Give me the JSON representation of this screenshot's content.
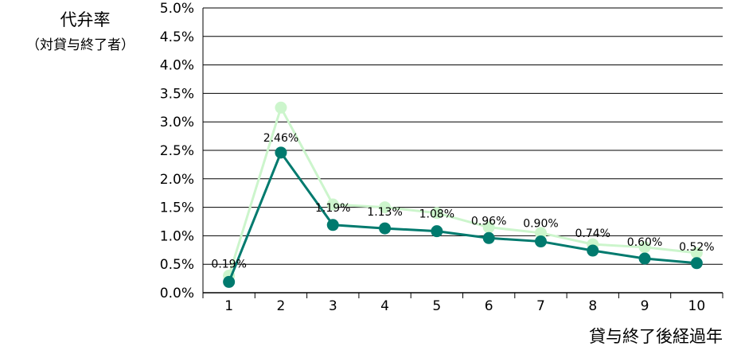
{
  "chart_data": {
    "type": "line",
    "ylabel": "代弁率",
    "ylabel_sub": "（対貸与終了者）",
    "xlabel": "貸与終了後経過年",
    "categories": [
      "1",
      "2",
      "3",
      "4",
      "5",
      "6",
      "7",
      "8",
      "9",
      "10"
    ],
    "ylim": [
      0,
      5
    ],
    "yticks": [
      "0.0%",
      "0.5%",
      "1.0%",
      "1.5%",
      "2.0%",
      "2.5%",
      "3.0%",
      "3.5%",
      "4.0%",
      "4.5%",
      "5.0%"
    ],
    "grid": true,
    "series": [
      {
        "values": [
          0.3,
          3.25,
          1.55,
          1.5,
          1.4,
          1.15,
          1.05,
          0.85,
          0.8,
          0.7
        ],
        "color": "#ccf5cc"
      },
      {
        "values": [
          0.19,
          2.46,
          1.19,
          1.13,
          1.08,
          0.96,
          0.9,
          0.74,
          0.6,
          0.52
        ],
        "labels": [
          "0.19%",
          "2.46%",
          "1.19%",
          "1.13%",
          "1.08%",
          "0.96%",
          "0.90%",
          "0.74%",
          "0.60%",
          "0.52%"
        ],
        "color": "#007a6e"
      }
    ]
  }
}
